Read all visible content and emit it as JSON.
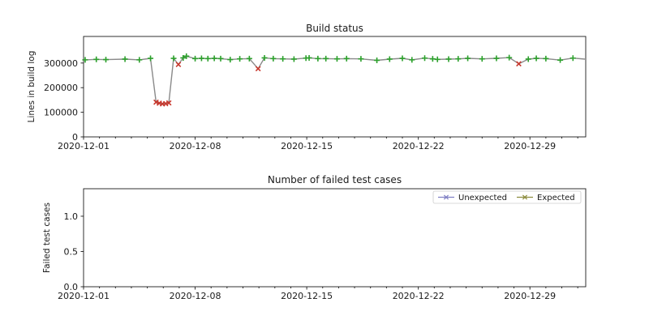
{
  "figure": {
    "background": "#ffffff",
    "text_color": "#1a1a1a"
  },
  "chart_data": [
    {
      "id": "build-status",
      "type": "line",
      "title": "Build status",
      "xlabel": "",
      "ylabel": "Lines in build log",
      "x_unit": "days since 2020-12-01",
      "xlim": [
        0,
        31.5
      ],
      "ylim": [
        0,
        408000
      ],
      "grid": false,
      "legend_position": "none",
      "line_color": "#8a8a8a",
      "markers": {
        "plus": {
          "shape": "plus",
          "color": "#2ca02c"
        },
        "x": {
          "shape": "x",
          "color": "#c8372d"
        }
      },
      "xticks": {
        "major_positions": [
          0,
          7,
          14,
          21,
          28
        ],
        "major_labels": [
          "2020-12-01",
          "2020-12-08",
          "2020-12-15",
          "2020-12-22",
          "2020-12-29"
        ],
        "minor_positions": [
          1,
          2,
          3,
          4,
          5,
          6,
          8,
          9,
          10,
          11,
          12,
          13,
          15,
          16,
          17,
          18,
          19,
          20,
          22,
          23,
          24,
          25,
          26,
          27,
          29,
          30,
          31
        ]
      },
      "yticks": {
        "positions": [
          0,
          100000,
          200000,
          300000
        ],
        "labels": [
          "0",
          "100000",
          "200000",
          "300000"
        ]
      },
      "points": [
        [
          0.1,
          313000,
          "plus"
        ],
        [
          0.8,
          315000,
          "plus"
        ],
        [
          1.4,
          314000,
          "plus"
        ],
        [
          2.6,
          316000,
          "plus"
        ],
        [
          3.5,
          313000,
          "plus"
        ],
        [
          4.2,
          319000,
          "plus"
        ],
        [
          4.55,
          141000,
          "x"
        ],
        [
          4.75,
          137000,
          "x"
        ],
        [
          4.95,
          134000,
          "x"
        ],
        [
          5.15,
          135000,
          "x"
        ],
        [
          5.35,
          138000,
          "x"
        ],
        [
          5.65,
          319000,
          "plus"
        ],
        [
          5.95,
          294000,
          "x"
        ],
        [
          6.25,
          321000,
          "plus"
        ],
        [
          6.45,
          328000,
          "plus"
        ],
        [
          7.0,
          318000,
          "plus"
        ],
        [
          7.4,
          319000,
          "plus"
        ],
        [
          7.8,
          318000,
          "plus"
        ],
        [
          8.2,
          319000,
          "plus"
        ],
        [
          8.6,
          318000,
          "plus"
        ],
        [
          9.2,
          314000,
          "plus"
        ],
        [
          9.8,
          317000,
          "plus"
        ],
        [
          10.4,
          318000,
          "plus"
        ],
        [
          10.95,
          277000,
          "x"
        ],
        [
          11.35,
          321000,
          "plus"
        ],
        [
          11.9,
          318000,
          "plus"
        ],
        [
          12.5,
          317000,
          "plus"
        ],
        [
          13.2,
          316000,
          "plus"
        ],
        [
          13.95,
          320000,
          "plus"
        ],
        [
          14.15,
          321000,
          "plus"
        ],
        [
          14.7,
          318000,
          "plus"
        ],
        [
          15.2,
          318000,
          "plus"
        ],
        [
          15.9,
          317000,
          "plus"
        ],
        [
          16.5,
          318000,
          "plus"
        ],
        [
          17.4,
          317000,
          "plus"
        ],
        [
          18.4,
          311000,
          "plus"
        ],
        [
          19.2,
          316000,
          "plus"
        ],
        [
          20.0,
          319000,
          "plus"
        ],
        [
          20.6,
          313000,
          "plus"
        ],
        [
          21.4,
          320000,
          "plus"
        ],
        [
          21.9,
          317000,
          "plus"
        ],
        [
          22.2,
          315000,
          "plus"
        ],
        [
          22.9,
          316000,
          "plus"
        ],
        [
          23.5,
          317000,
          "plus"
        ],
        [
          24.1,
          319000,
          "plus"
        ],
        [
          25.0,
          317000,
          "plus"
        ],
        [
          25.9,
          319000,
          "plus"
        ],
        [
          26.7,
          322000,
          "plus"
        ],
        [
          27.3,
          297000,
          "x"
        ],
        [
          27.9,
          316000,
          "plus"
        ],
        [
          28.4,
          319000,
          "plus"
        ],
        [
          29.0,
          318000,
          "plus"
        ],
        [
          29.9,
          312000,
          "plus"
        ],
        [
          30.7,
          320000,
          "plus"
        ],
        [
          31.45,
          316000,
          "none"
        ]
      ]
    },
    {
      "id": "failed-test-cases",
      "type": "line",
      "title": "Number of failed test cases",
      "xlabel": "",
      "ylabel": "Failed test cases",
      "x_unit": "days since 2020-12-01",
      "xlim": [
        0,
        31.5
      ],
      "ylim": [
        0,
        1.39
      ],
      "grid": false,
      "xticks": {
        "major_positions": [
          0,
          7,
          14,
          21,
          28
        ],
        "major_labels": [
          "2020-12-01",
          "2020-12-08",
          "2020-12-15",
          "2020-12-22",
          "2020-12-29"
        ],
        "minor_positions": [
          1,
          2,
          3,
          4,
          5,
          6,
          8,
          9,
          10,
          11,
          12,
          13,
          15,
          16,
          17,
          18,
          19,
          20,
          22,
          23,
          24,
          25,
          26,
          27,
          29,
          30,
          31
        ]
      },
      "yticks": {
        "positions": [
          0,
          0.5,
          1.0
        ],
        "labels": [
          "0.0",
          "0.5",
          "1.0"
        ]
      },
      "legend": {
        "position": "upper right",
        "frame_color": "#cccccc",
        "entries": [
          {
            "label": "Unexpected",
            "color": "#8080c4",
            "marker": "x"
          },
          {
            "label": "Expected",
            "color": "#8d8d3f",
            "marker": "x"
          }
        ]
      },
      "series": [
        {
          "name": "Unexpected",
          "color": "#8080c4",
          "points": []
        },
        {
          "name": "Expected",
          "color": "#8d8d3f",
          "points": []
        }
      ]
    }
  ]
}
